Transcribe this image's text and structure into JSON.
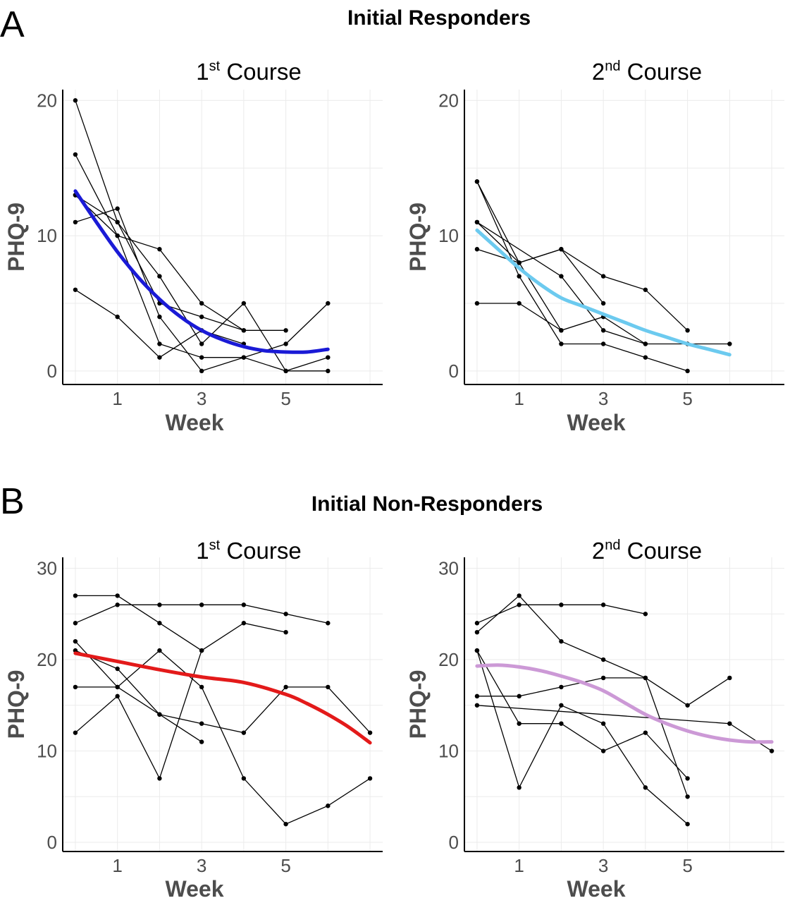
{
  "figure": {
    "panels": [
      {
        "letter": "A",
        "title": "Initial Responders"
      },
      {
        "letter": "B",
        "title": "Initial Non-Responders"
      }
    ]
  },
  "chart_data": [
    {
      "type": "line",
      "panel": "A",
      "title": {
        "main": "1",
        "sup": "st",
        "rest": " Course"
      },
      "xlabel": "Week",
      "ylabel": "PHQ-9",
      "xlim": [
        -0.3,
        7.3
      ],
      "ylim": [
        -1,
        20.8
      ],
      "x_ticks": [
        1,
        3,
        5
      ],
      "y_ticks": [
        0,
        10,
        20
      ],
      "series": [
        {
          "x": [
            0,
            1,
            2,
            3,
            4
          ],
          "y": [
            20,
            11,
            5,
            4,
            3
          ]
        },
        {
          "x": [
            0,
            1,
            2,
            3,
            4,
            5
          ],
          "y": [
            16,
            10,
            9,
            5,
            3,
            3
          ]
        },
        {
          "x": [
            0,
            1,
            2,
            3,
            4,
            5,
            6
          ],
          "y": [
            13,
            11,
            7,
            2,
            5,
            0,
            0
          ]
        },
        {
          "x": [
            0,
            1,
            2,
            3,
            4,
            5,
            6
          ],
          "y": [
            11,
            12,
            4,
            0,
            1,
            2,
            5
          ]
        },
        {
          "x": [
            0,
            1,
            2,
            3,
            4
          ],
          "y": [
            6,
            4,
            1,
            3,
            2
          ]
        },
        {
          "x": [
            0,
            1,
            2,
            3,
            4,
            5,
            6
          ],
          "y": [
            13,
            10,
            2,
            1,
            1,
            0,
            1
          ]
        }
      ],
      "trend": {
        "color": "#1a1ad6",
        "x": [
          0,
          0.5,
          1,
          1.5,
          2,
          2.5,
          3,
          3.5,
          4,
          4.5,
          5,
          5.5,
          6
        ],
        "y": [
          13.3,
          11.0,
          8.8,
          6.9,
          5.3,
          4.0,
          3.0,
          2.3,
          1.8,
          1.5,
          1.4,
          1.4,
          1.6
        ]
      }
    },
    {
      "type": "line",
      "panel": "A",
      "title": {
        "main": "2",
        "sup": "nd",
        "rest": " Course"
      },
      "xlabel": "Week",
      "ylabel": "PHQ-9",
      "xlim": [
        -0.3,
        7.3
      ],
      "ylim": [
        -1,
        20.8
      ],
      "x_ticks": [
        1,
        3,
        5
      ],
      "y_ticks": [
        0,
        10,
        20
      ],
      "series": [
        {
          "x": [
            0,
            1,
            2,
            3,
            4,
            5,
            6
          ],
          "y": [
            14,
            8,
            3,
            4,
            2,
            2,
            2
          ]
        },
        {
          "x": [
            0,
            1,
            2,
            3,
            4,
            5
          ],
          "y": [
            14,
            7,
            2,
            2,
            1,
            0
          ]
        },
        {
          "x": [
            0,
            1,
            2,
            3,
            4,
            5
          ],
          "y": [
            11,
            8,
            9,
            7,
            6,
            3
          ]
        },
        {
          "x": [
            0,
            2,
            3,
            4
          ],
          "y": [
            11,
            7,
            3,
            2
          ]
        },
        {
          "x": [
            0,
            1,
            2,
            3
          ],
          "y": [
            9,
            8,
            9,
            5
          ]
        },
        {
          "x": [
            0,
            1,
            2
          ],
          "y": [
            5,
            5,
            3
          ]
        }
      ],
      "trend": {
        "color": "#6ccaef",
        "x": [
          0,
          0.5,
          1,
          1.5,
          2,
          2.5,
          3,
          3.5,
          4,
          4.5,
          5,
          5.5,
          6
        ],
        "y": [
          10.4,
          9.0,
          7.6,
          6.4,
          5.4,
          4.8,
          4.2,
          3.6,
          3.0,
          2.5,
          2.0,
          1.6,
          1.2
        ]
      }
    },
    {
      "type": "line",
      "panel": "B",
      "title": {
        "main": "1",
        "sup": "st",
        "rest": " Course"
      },
      "xlabel": "Week",
      "ylabel": "PHQ-9",
      "xlim": [
        -0.3,
        7.3
      ],
      "ylim": [
        -1,
        31.2
      ],
      "x_ticks": [
        1,
        3,
        5
      ],
      "y_ticks": [
        0,
        10,
        20,
        30
      ],
      "series": [
        {
          "x": [
            0,
            1,
            2,
            3,
            4,
            5
          ],
          "y": [
            27,
            27,
            24,
            21,
            24,
            23
          ]
        },
        {
          "x": [
            0,
            1,
            2,
            3,
            4,
            5,
            6
          ],
          "y": [
            24,
            26,
            26,
            26,
            26,
            25,
            24
          ]
        },
        {
          "x": [
            0,
            1,
            2,
            3,
            4,
            5,
            6,
            7
          ],
          "y": [
            22,
            17,
            21,
            17,
            7,
            2,
            4,
            7
          ]
        },
        {
          "x": [
            0,
            1,
            2,
            3
          ],
          "y": [
            21,
            19,
            14,
            11
          ]
        },
        {
          "x": [
            0,
            1,
            2,
            3,
            4,
            5,
            6,
            7
          ],
          "y": [
            17,
            17,
            14,
            13,
            12,
            17,
            17,
            12
          ]
        },
        {
          "x": [
            0,
            1,
            2,
            3
          ],
          "y": [
            12,
            16,
            7,
            21
          ]
        }
      ],
      "trend": {
        "color": "#e31a1a",
        "x": [
          0,
          1,
          2,
          3,
          4,
          5,
          5.5,
          6,
          6.5,
          7
        ],
        "y": [
          20.7,
          19.8,
          18.9,
          18.1,
          17.5,
          16.2,
          15.2,
          14.0,
          12.6,
          10.9
        ]
      }
    },
    {
      "type": "line",
      "panel": "B",
      "title": {
        "main": "2",
        "sup": "nd",
        "rest": " Course"
      },
      "xlabel": "Week",
      "ylabel": "PHQ-9",
      "xlim": [
        -0.3,
        7.3
      ],
      "ylim": [
        -1,
        31.2
      ],
      "x_ticks": [
        1,
        3,
        5
      ],
      "y_ticks": [
        0,
        10,
        20,
        30
      ],
      "series": [
        {
          "x": [
            0,
            1,
            2,
            3,
            4
          ],
          "y": [
            24,
            26,
            26,
            26,
            25
          ]
        },
        {
          "x": [
            0,
            1,
            2,
            3,
            4,
            5
          ],
          "y": [
            23,
            27,
            22,
            20,
            18,
            5
          ]
        },
        {
          "x": [
            0,
            1,
            2,
            3,
            4,
            5
          ],
          "y": [
            21,
            13,
            13,
            10,
            12,
            7
          ]
        },
        {
          "x": [
            0,
            1,
            2,
            3,
            4,
            5
          ],
          "y": [
            21,
            6,
            15,
            13,
            6,
            2
          ]
        },
        {
          "x": [
            0,
            1,
            2,
            3,
            4,
            5,
            6
          ],
          "y": [
            16,
            16,
            17,
            18,
            18,
            15,
            18
          ]
        },
        {
          "x": [
            0,
            6,
            7
          ],
          "y": [
            15,
            13,
            10
          ]
        }
      ],
      "trend": {
        "color": "#cc99d6",
        "x": [
          0,
          0.5,
          1,
          1.5,
          2,
          2.5,
          3,
          3.5,
          4,
          4.5,
          5,
          5.5,
          6,
          6.5,
          7
        ],
        "y": [
          19.3,
          19.4,
          19.2,
          18.8,
          18.2,
          17.5,
          16.6,
          15.3,
          14.0,
          13.0,
          12.2,
          11.6,
          11.2,
          11.0,
          11.0
        ]
      }
    }
  ]
}
